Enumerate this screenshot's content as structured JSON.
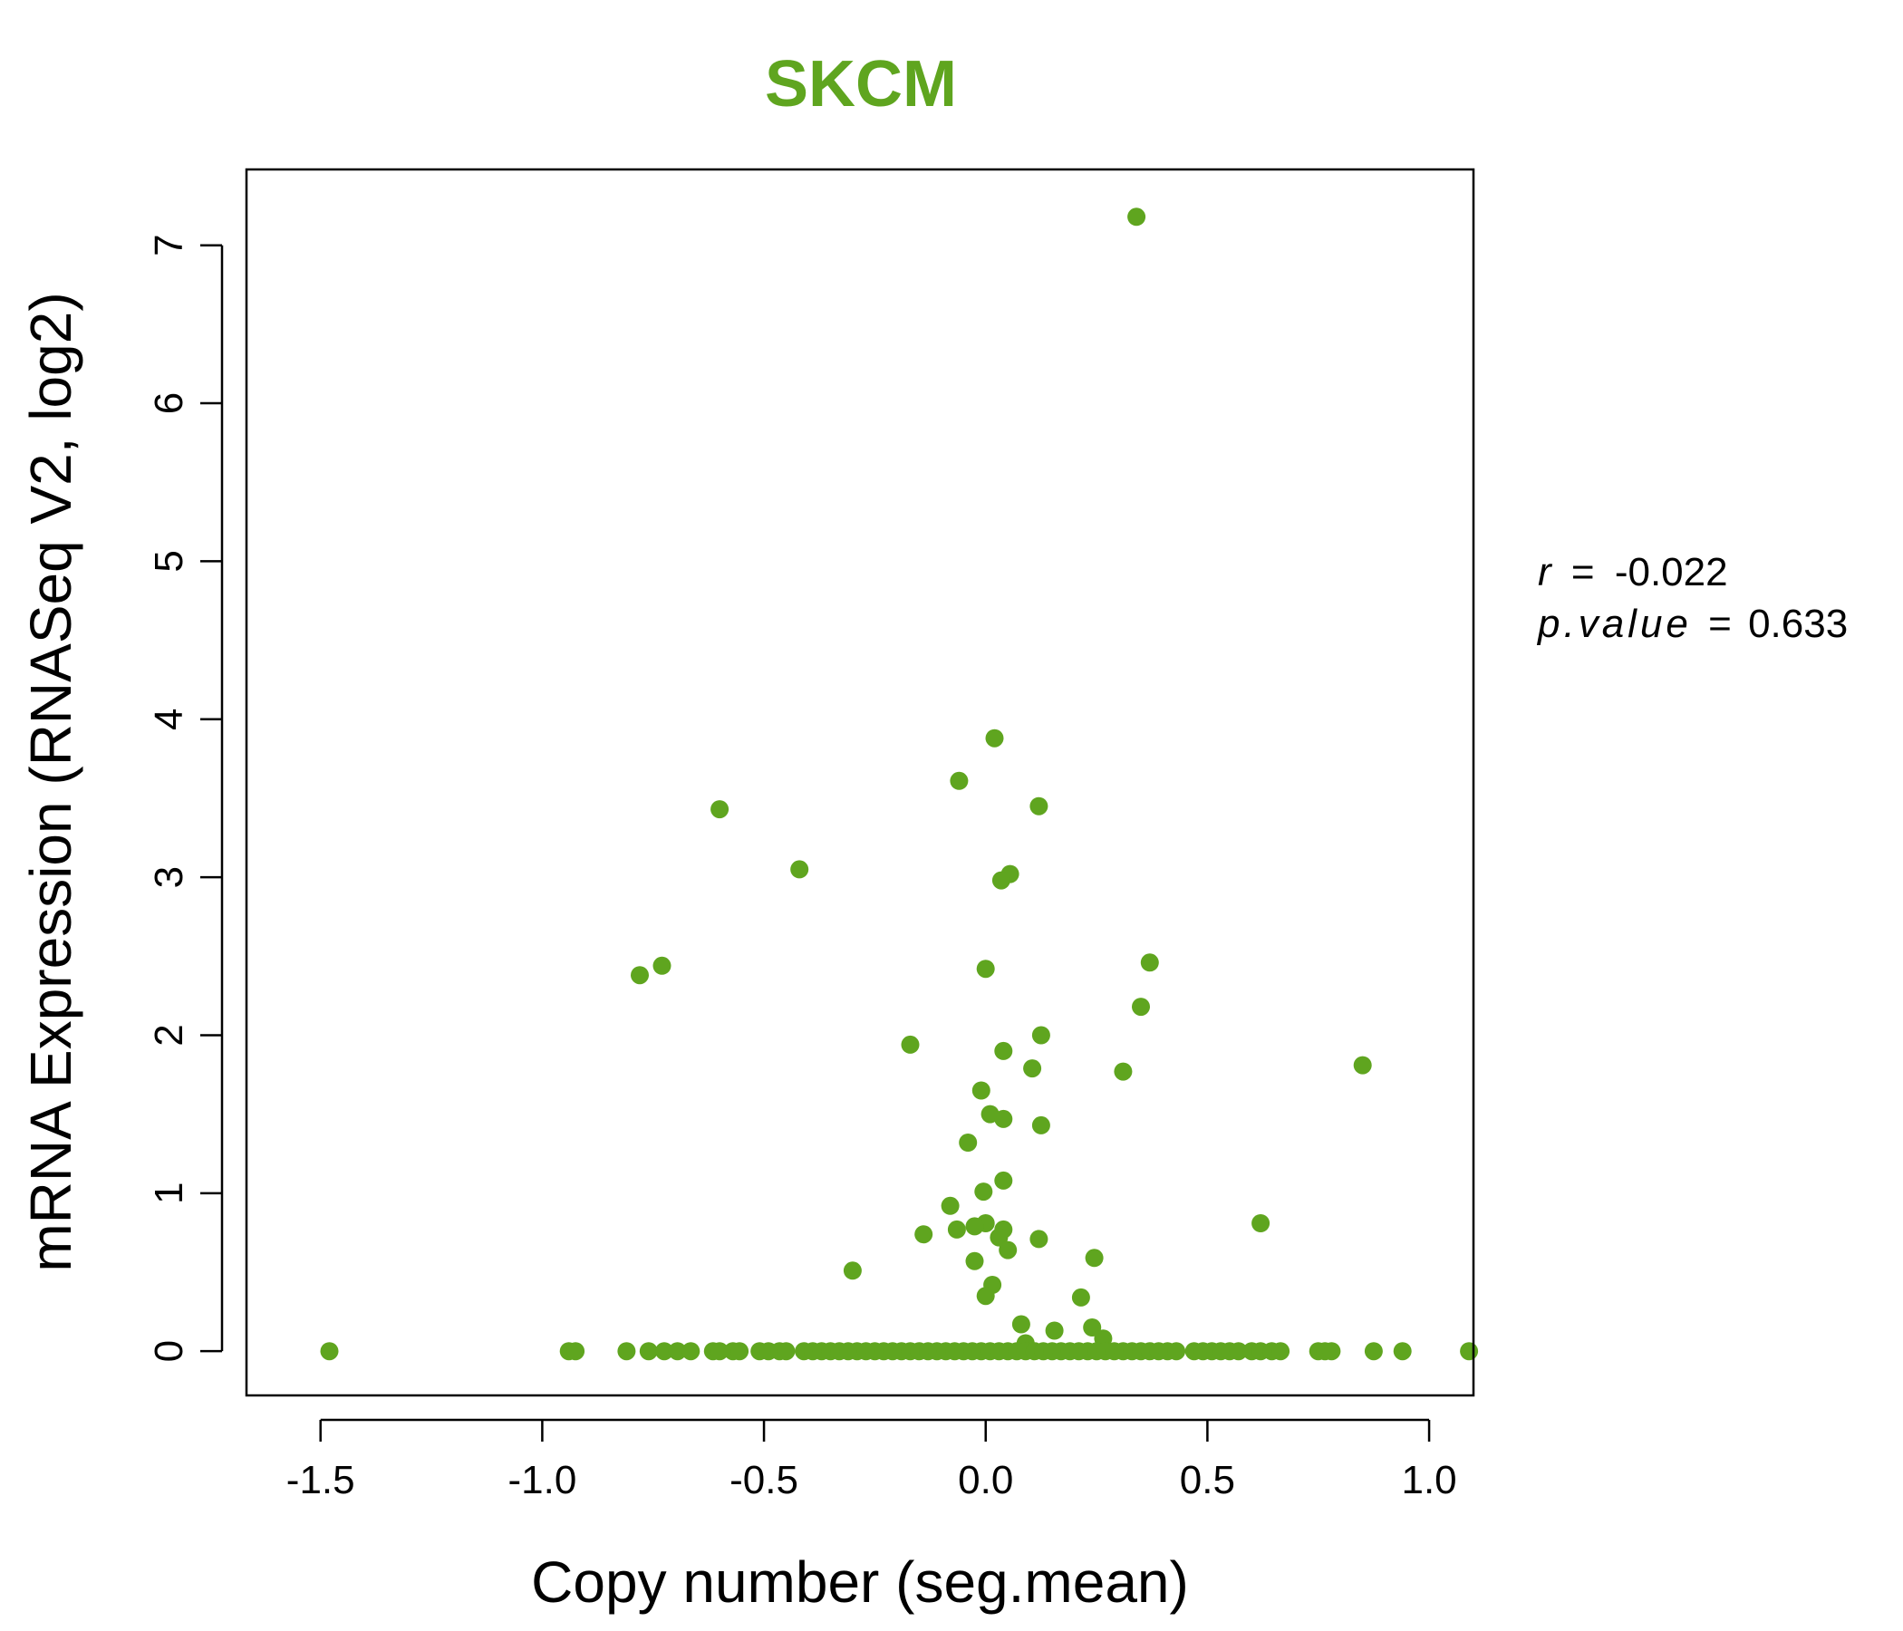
{
  "colors": {
    "accent": "#5fa51f",
    "axis": "#000000",
    "background": "#ffffff"
  },
  "chart_data": {
    "type": "scatter",
    "title": "SKCM",
    "xlabel": "Copy number (seg.mean)",
    "ylabel": "mRNA Expression (RNASeq V2, log2)",
    "xlim": [
      -1.667,
      1.1
    ],
    "ylim": [
      -0.28,
      7.48
    ],
    "x_ticks": [
      -1.5,
      -1.0,
      -0.5,
      0.0,
      0.5,
      1.0
    ],
    "x_tick_labels": [
      "-1.5",
      "-1.0",
      "-0.5",
      "0.0",
      "0.5",
      "1.0"
    ],
    "y_ticks": [
      0,
      1,
      2,
      3,
      4,
      5,
      6,
      7
    ],
    "y_tick_labels": [
      "0",
      "1",
      "2",
      "3",
      "4",
      "5",
      "6",
      "7"
    ],
    "annotation": {
      "r_label": "r",
      "r_value": "-0.022",
      "p_label": "p.value",
      "p_value": "0.633",
      "equals": "="
    },
    "points": [
      {
        "x": 0.34,
        "y": 7.18
      },
      {
        "x": 0.02,
        "y": 3.88
      },
      {
        "x": -0.06,
        "y": 3.61
      },
      {
        "x": -0.6,
        "y": 3.43
      },
      {
        "x": 0.12,
        "y": 3.45
      },
      {
        "x": -0.42,
        "y": 3.05
      },
      {
        "x": 0.055,
        "y": 3.02
      },
      {
        "x": 0.035,
        "y": 2.98
      },
      {
        "x": -0.73,
        "y": 2.44
      },
      {
        "x": -0.78,
        "y": 2.38
      },
      {
        "x": 0.0,
        "y": 2.42
      },
      {
        "x": 0.37,
        "y": 2.46
      },
      {
        "x": 0.35,
        "y": 2.18
      },
      {
        "x": 0.125,
        "y": 2.0
      },
      {
        "x": -0.17,
        "y": 1.94
      },
      {
        "x": 0.04,
        "y": 1.9
      },
      {
        "x": 0.85,
        "y": 1.81
      },
      {
        "x": 0.105,
        "y": 1.79
      },
      {
        "x": 0.31,
        "y": 1.77
      },
      {
        "x": -0.01,
        "y": 1.65
      },
      {
        "x": 0.01,
        "y": 1.5
      },
      {
        "x": 0.04,
        "y": 1.47
      },
      {
        "x": 0.125,
        "y": 1.43
      },
      {
        "x": -0.04,
        "y": 1.32
      },
      {
        "x": 0.04,
        "y": 1.08
      },
      {
        "x": -0.005,
        "y": 1.01
      },
      {
        "x": -0.08,
        "y": 0.92
      },
      {
        "x": 0.0,
        "y": 0.81
      },
      {
        "x": -0.025,
        "y": 0.79
      },
      {
        "x": 0.62,
        "y": 0.81
      },
      {
        "x": -0.065,
        "y": 0.77
      },
      {
        "x": 0.04,
        "y": 0.77
      },
      {
        "x": -0.14,
        "y": 0.74
      },
      {
        "x": 0.03,
        "y": 0.72
      },
      {
        "x": 0.12,
        "y": 0.71
      },
      {
        "x": 0.05,
        "y": 0.64
      },
      {
        "x": 0.245,
        "y": 0.59
      },
      {
        "x": -0.025,
        "y": 0.57
      },
      {
        "x": -0.3,
        "y": 0.51
      },
      {
        "x": 0.015,
        "y": 0.42
      },
      {
        "x": 0.0,
        "y": 0.35
      },
      {
        "x": 0.215,
        "y": 0.34
      },
      {
        "x": 0.08,
        "y": 0.17
      },
      {
        "x": 0.24,
        "y": 0.15
      },
      {
        "x": 0.155,
        "y": 0.13
      },
      {
        "x": 0.265,
        "y": 0.08
      },
      {
        "x": 0.09,
        "y": 0.05
      },
      {
        "x": -1.48,
        "y": 0.0
      },
      {
        "x": -0.94,
        "y": 0.0
      },
      {
        "x": -0.925,
        "y": 0.0
      },
      {
        "x": -0.81,
        "y": 0.0
      },
      {
        "x": -0.76,
        "y": 0.0
      },
      {
        "x": -0.725,
        "y": 0.0
      },
      {
        "x": -0.695,
        "y": 0.0
      },
      {
        "x": -0.665,
        "y": 0.0
      },
      {
        "x": -0.615,
        "y": 0.0
      },
      {
        "x": -0.6,
        "y": 0.0
      },
      {
        "x": -0.57,
        "y": 0.0
      },
      {
        "x": -0.555,
        "y": 0.0
      },
      {
        "x": -0.51,
        "y": 0.0
      },
      {
        "x": -0.49,
        "y": 0.0
      },
      {
        "x": -0.465,
        "y": 0.0
      },
      {
        "x": -0.45,
        "y": 0.0
      },
      {
        "x": -0.41,
        "y": 0.0
      },
      {
        "x": -0.39,
        "y": 0.0
      },
      {
        "x": -0.37,
        "y": 0.0
      },
      {
        "x": -0.35,
        "y": 0.0
      },
      {
        "x": -0.33,
        "y": 0.0
      },
      {
        "x": -0.31,
        "y": 0.0
      },
      {
        "x": -0.29,
        "y": 0.0
      },
      {
        "x": -0.27,
        "y": 0.0
      },
      {
        "x": -0.25,
        "y": 0.0
      },
      {
        "x": -0.23,
        "y": 0.0
      },
      {
        "x": -0.21,
        "y": 0.0
      },
      {
        "x": -0.19,
        "y": 0.0
      },
      {
        "x": -0.17,
        "y": 0.0
      },
      {
        "x": -0.15,
        "y": 0.0
      },
      {
        "x": -0.13,
        "y": 0.0
      },
      {
        "x": -0.11,
        "y": 0.0
      },
      {
        "x": -0.09,
        "y": 0.0
      },
      {
        "x": -0.07,
        "y": 0.0
      },
      {
        "x": -0.05,
        "y": 0.0
      },
      {
        "x": -0.03,
        "y": 0.0
      },
      {
        "x": -0.01,
        "y": 0.0
      },
      {
        "x": 0.01,
        "y": 0.0
      },
      {
        "x": 0.03,
        "y": 0.0
      },
      {
        "x": 0.05,
        "y": 0.0
      },
      {
        "x": 0.07,
        "y": 0.0
      },
      {
        "x": 0.09,
        "y": 0.0
      },
      {
        "x": 0.11,
        "y": 0.0
      },
      {
        "x": 0.13,
        "y": 0.0
      },
      {
        "x": 0.15,
        "y": 0.0
      },
      {
        "x": 0.17,
        "y": 0.0
      },
      {
        "x": 0.19,
        "y": 0.0
      },
      {
        "x": 0.21,
        "y": 0.0
      },
      {
        "x": 0.23,
        "y": 0.0
      },
      {
        "x": 0.25,
        "y": 0.0
      },
      {
        "x": 0.27,
        "y": 0.0
      },
      {
        "x": 0.29,
        "y": 0.0
      },
      {
        "x": 0.31,
        "y": 0.0
      },
      {
        "x": 0.33,
        "y": 0.0
      },
      {
        "x": 0.35,
        "y": 0.0
      },
      {
        "x": 0.37,
        "y": 0.0
      },
      {
        "x": 0.39,
        "y": 0.0
      },
      {
        "x": 0.41,
        "y": 0.0
      },
      {
        "x": 0.43,
        "y": 0.0
      },
      {
        "x": 0.47,
        "y": 0.0
      },
      {
        "x": 0.49,
        "y": 0.0
      },
      {
        "x": 0.51,
        "y": 0.0
      },
      {
        "x": 0.53,
        "y": 0.0
      },
      {
        "x": 0.55,
        "y": 0.0
      },
      {
        "x": 0.57,
        "y": 0.0
      },
      {
        "x": 0.6,
        "y": 0.0
      },
      {
        "x": 0.62,
        "y": 0.0
      },
      {
        "x": 0.645,
        "y": 0.0
      },
      {
        "x": 0.665,
        "y": 0.0
      },
      {
        "x": 0.75,
        "y": 0.0
      },
      {
        "x": 0.765,
        "y": 0.0
      },
      {
        "x": 0.78,
        "y": 0.0
      },
      {
        "x": 0.875,
        "y": 0.0
      },
      {
        "x": 0.94,
        "y": 0.0
      },
      {
        "x": 1.09,
        "y": 0.0
      }
    ]
  }
}
